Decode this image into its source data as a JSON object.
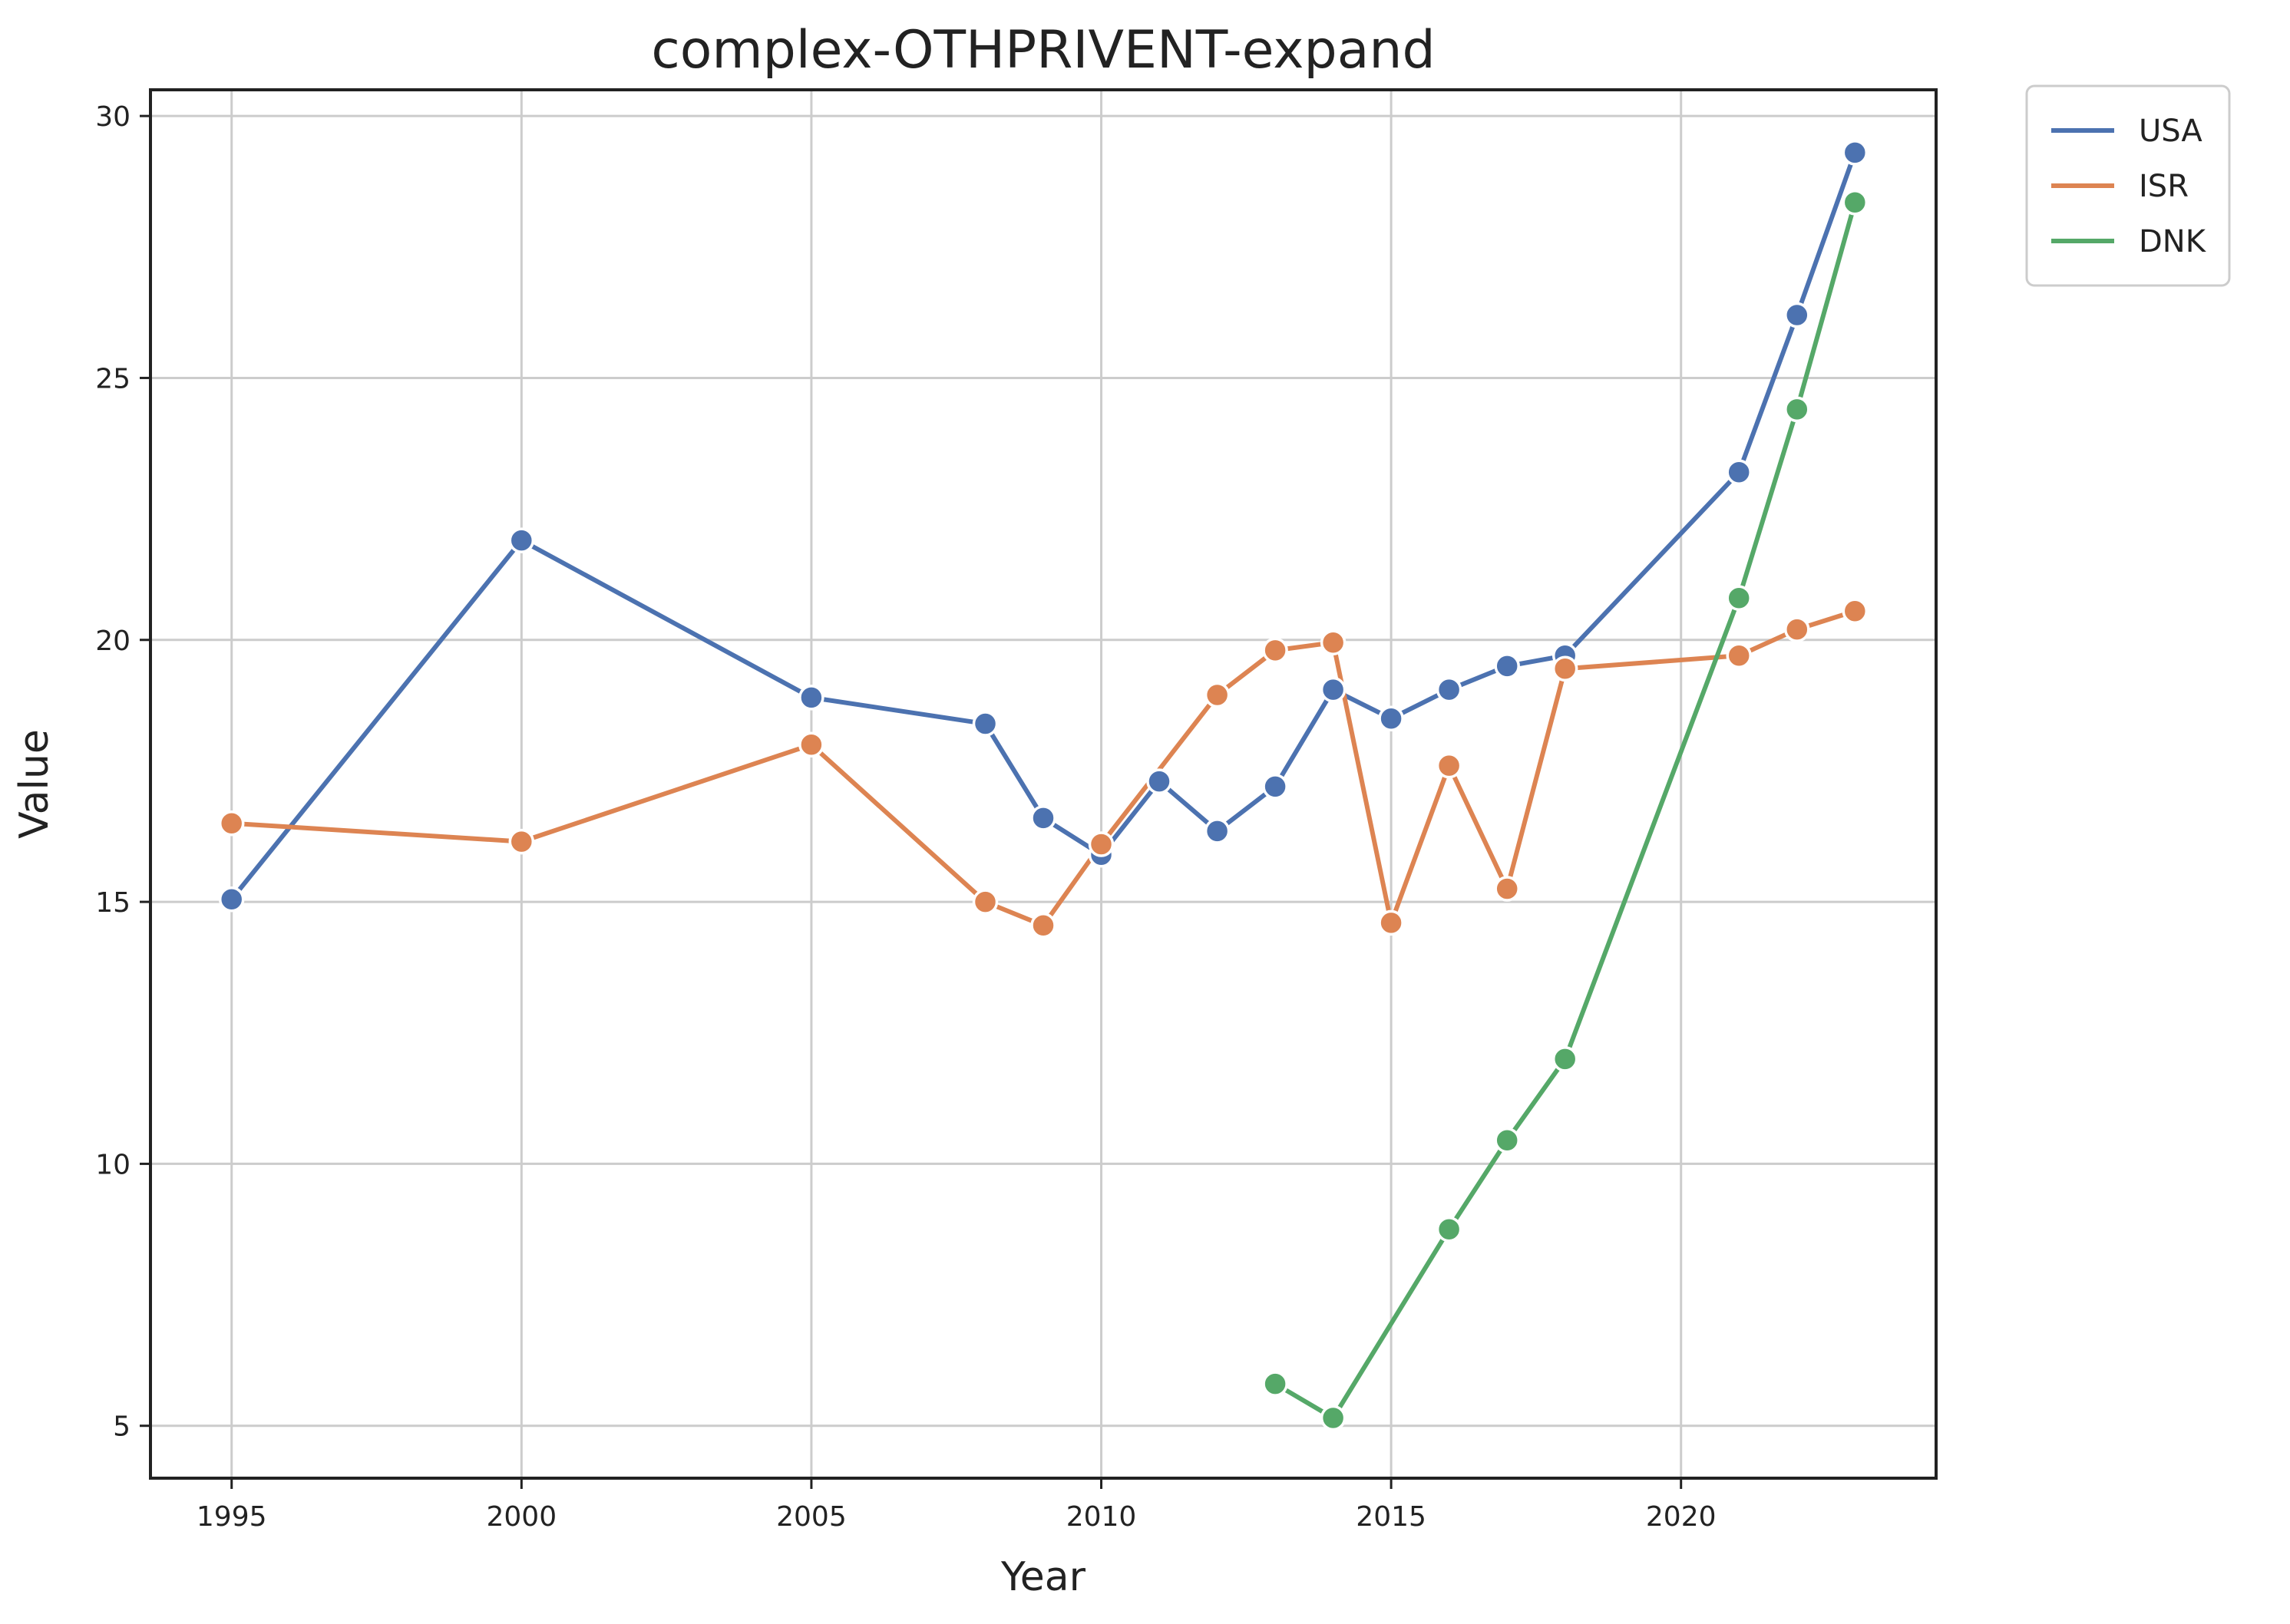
{
  "chart_data": {
    "type": "line",
    "title": "complex-OTHPRIVENT-expand",
    "xlabel": "Year",
    "ylabel": "Value",
    "xlim": [
      1993.6,
      2024.4
    ],
    "ylim": [
      4.0,
      30.5
    ],
    "x_ticks": [
      1995,
      2000,
      2005,
      2010,
      2015,
      2020
    ],
    "y_ticks": [
      5,
      10,
      15,
      20,
      25,
      30
    ],
    "grid": true,
    "legend_position": "outside-top-right",
    "series": [
      {
        "name": "USA",
        "color": "#4c72b0",
        "x": [
          1995,
          2000,
          2005,
          2008,
          2009,
          2010,
          2011,
          2012,
          2013,
          2014,
          2015,
          2016,
          2017,
          2018,
          2021,
          2022,
          2023
        ],
        "y": [
          15.05,
          21.9,
          18.9,
          18.4,
          16.6,
          15.9,
          17.3,
          16.35,
          17.2,
          19.05,
          18.5,
          19.05,
          19.5,
          19.7,
          23.2,
          26.2,
          29.3
        ]
      },
      {
        "name": "ISR",
        "color": "#dd8452",
        "x": [
          1995,
          2000,
          2005,
          2008,
          2009,
          2010,
          2012,
          2013,
          2014,
          2015,
          2016,
          2017,
          2018,
          2021,
          2022,
          2023
        ],
        "y": [
          16.5,
          16.15,
          18.0,
          15.0,
          14.55,
          16.1,
          18.95,
          19.8,
          19.95,
          14.6,
          17.6,
          15.25,
          19.45,
          19.7,
          20.2,
          20.55
        ]
      },
      {
        "name": "DNK",
        "color": "#55a868",
        "x": [
          2013,
          2014,
          2016,
          2017,
          2018,
          2021,
          2022,
          2023
        ],
        "y": [
          5.8,
          5.15,
          8.75,
          10.45,
          12.0,
          20.8,
          24.4,
          28.35
        ]
      }
    ]
  }
}
